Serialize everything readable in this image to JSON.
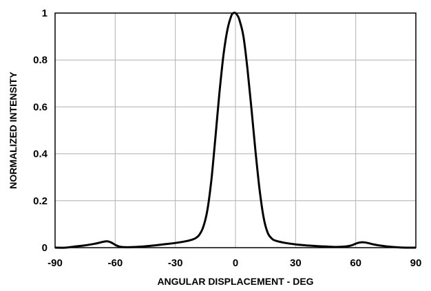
{
  "chart_data": {
    "type": "line",
    "title": "",
    "xlabel": "ANGULAR DISPLACEMENT - DEG",
    "ylabel": "NORMALIZED INTENSITY",
    "xlim": [
      -90,
      90
    ],
    "ylim": [
      0,
      1
    ],
    "xticks": [
      -90,
      -60,
      -30,
      0,
      30,
      60,
      90
    ],
    "yticks": [
      0,
      0.2,
      0.4,
      0.6,
      0.8,
      1
    ],
    "xtick_labels": [
      "-90",
      "-60",
      "-30",
      "0",
      "30",
      "60",
      "90"
    ],
    "ytick_labels": [
      "0",
      "0.2",
      "0.4",
      "0.6",
      "0.8",
      "1"
    ],
    "grid": true,
    "line_color": "#000000",
    "grid_color": "#b0b0b0",
    "series": [
      {
        "x": [
          -90,
          -85,
          -80,
          -75,
          -70,
          -66,
          -64,
          -62,
          -60,
          -58,
          -55,
          -50,
          -45,
          -40,
          -35,
          -30,
          -25,
          -22,
          -20,
          -18,
          -16,
          -14,
          -12,
          -10,
          -8,
          -6,
          -4,
          -2,
          -1,
          0,
          1,
          2,
          4,
          6,
          8,
          10,
          12,
          14,
          16,
          18,
          20,
          25,
          30,
          35,
          40,
          45,
          50,
          55,
          58,
          60,
          62,
          64,
          66,
          70,
          75,
          80,
          85,
          90
        ],
        "y": [
          0.0,
          0.0,
          0.005,
          0.01,
          0.017,
          0.025,
          0.027,
          0.022,
          0.012,
          0.005,
          0.002,
          0.003,
          0.006,
          0.01,
          0.015,
          0.02,
          0.027,
          0.033,
          0.04,
          0.055,
          0.09,
          0.16,
          0.29,
          0.47,
          0.66,
          0.82,
          0.93,
          0.99,
          1.0,
          1.0,
          0.99,
          0.97,
          0.9,
          0.76,
          0.59,
          0.41,
          0.25,
          0.13,
          0.065,
          0.04,
          0.03,
          0.02,
          0.014,
          0.01,
          0.007,
          0.005,
          0.003,
          0.005,
          0.01,
          0.017,
          0.022,
          0.023,
          0.02,
          0.012,
          0.006,
          0.002,
          0.0,
          0.0
        ]
      }
    ]
  }
}
